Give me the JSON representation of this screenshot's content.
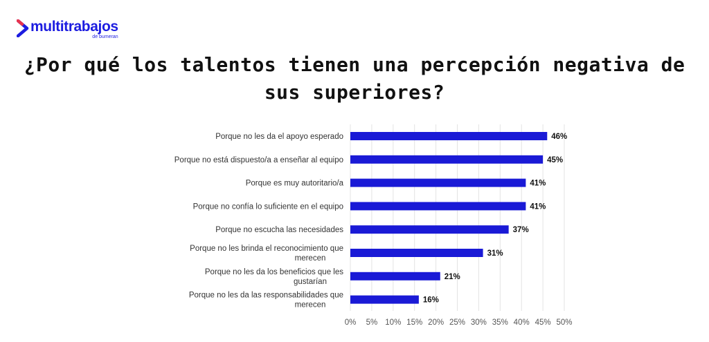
{
  "brand": {
    "name": "multitrabajos",
    "sub": "de bumeran",
    "color": "#1c1ce0"
  },
  "chart_data": {
    "type": "bar",
    "orientation": "horizontal",
    "title": "¿Por qué los talentos tienen una percepción negativa de sus superiores?",
    "categories": [
      "Porque no les da el apoyo esperado",
      "Porque no está dispuesto/a a enseñar al equipo",
      "Porque es muy autoritario/a",
      "Porque no confía lo suficiente en el equipo",
      "Porque no escucha las necesidades",
      "Porque no les brinda el reconocimiento que merecen",
      "Porque no les da los beneficios que les gustarían",
      "Porque no les da las responsabilidades que merecen"
    ],
    "values": [
      46,
      45,
      41,
      41,
      37,
      31,
      21,
      16
    ],
    "value_labels": [
      "46%",
      "45%",
      "41%",
      "41%",
      "37%",
      "31%",
      "21%",
      "16%"
    ],
    "xlim": [
      0,
      50
    ],
    "ticks": [
      0,
      5,
      10,
      15,
      20,
      25,
      30,
      35,
      40,
      45,
      50
    ],
    "tick_labels": [
      "0%",
      "5%",
      "10%",
      "15%",
      "20%",
      "25%",
      "30%",
      "35%",
      "40%",
      "45%",
      "50%"
    ],
    "grid": true,
    "bar_color": "#1a1ad6",
    "grid_color": "#e3e3e3"
  }
}
